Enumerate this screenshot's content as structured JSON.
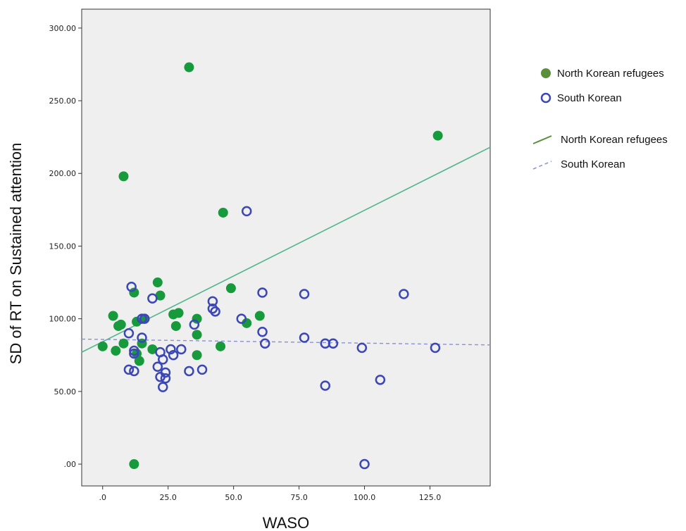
{
  "chart_data": {
    "type": "scatter",
    "xlabel": "WASO",
    "ylabel": "SD of RT on Sustained attention",
    "xlim": [
      -8,
      148
    ],
    "ylim": [
      -15,
      313
    ],
    "x_ticks": [
      0,
      25,
      50,
      75,
      100,
      125
    ],
    "x_tick_labels": [
      ".0",
      "25.0",
      "50.0",
      "75.0",
      "100.0",
      "125.0"
    ],
    "y_ticks": [
      0,
      50,
      100,
      150,
      200,
      250,
      300
    ],
    "y_tick_labels": [
      ".00",
      "50.00",
      "100.00",
      "150.00",
      "200.00",
      "250.00",
      "300.00"
    ],
    "grid": false,
    "legend_position": "right",
    "background": "#efefef",
    "series": [
      {
        "name": "North Korean refugees",
        "marker": "filled-circle",
        "color": "#169a3c",
        "points": [
          [
            0,
            81
          ],
          [
            4,
            102
          ],
          [
            5,
            78
          ],
          [
            6,
            95
          ],
          [
            7,
            96
          ],
          [
            8,
            83
          ],
          [
            8,
            198
          ],
          [
            12,
            118
          ],
          [
            13,
            98
          ],
          [
            13,
            76
          ],
          [
            14,
            71
          ],
          [
            15,
            83
          ],
          [
            16,
            100
          ],
          [
            19,
            79
          ],
          [
            21,
            125
          ],
          [
            22,
            116
          ],
          [
            27,
            103
          ],
          [
            28,
            95
          ],
          [
            29,
            104
          ],
          [
            33,
            273
          ],
          [
            36,
            100
          ],
          [
            36,
            89
          ],
          [
            36,
            75
          ],
          [
            45,
            81
          ],
          [
            46,
            173
          ],
          [
            49,
            121
          ],
          [
            55,
            97
          ],
          [
            60,
            102
          ],
          [
            12,
            0
          ],
          [
            128,
            226
          ]
        ]
      },
      {
        "name": "South Korean",
        "marker": "open-circle",
        "color": "#3b47b5",
        "points": [
          [
            10,
            65
          ],
          [
            10,
            90
          ],
          [
            11,
            122
          ],
          [
            12,
            64
          ],
          [
            12,
            78
          ],
          [
            12,
            76
          ],
          [
            15,
            100
          ],
          [
            15,
            87
          ],
          [
            16,
            100
          ],
          [
            19,
            114
          ],
          [
            21,
            67
          ],
          [
            22,
            77
          ],
          [
            22,
            60
          ],
          [
            23,
            72
          ],
          [
            23,
            53
          ],
          [
            24,
            63
          ],
          [
            24,
            59
          ],
          [
            26,
            79
          ],
          [
            27,
            75
          ],
          [
            30,
            79
          ],
          [
            33,
            64
          ],
          [
            35,
            96
          ],
          [
            38,
            65
          ],
          [
            42,
            112
          ],
          [
            42,
            107
          ],
          [
            43,
            105
          ],
          [
            53,
            100
          ],
          [
            55,
            174
          ],
          [
            61,
            118
          ],
          [
            61,
            91
          ],
          [
            62,
            83
          ],
          [
            77,
            117
          ],
          [
            77,
            87
          ],
          [
            85,
            83
          ],
          [
            85,
            54
          ],
          [
            88,
            83
          ],
          [
            99,
            80
          ],
          [
            100,
            0
          ],
          [
            106,
            58
          ],
          [
            115,
            117
          ],
          [
            127,
            80
          ]
        ]
      }
    ],
    "fit_lines": [
      {
        "name": "North Korean refugees",
        "style": "solid",
        "color": "#4fb58a",
        "x": [
          -8,
          148
        ],
        "y": [
          77,
          218
        ]
      },
      {
        "name": "South Korean",
        "style": "dashed",
        "color": "#8a90d8",
        "x": [
          -8,
          148
        ],
        "y": [
          86,
          82
        ]
      }
    ],
    "legend": {
      "markers": [
        {
          "label": "North Korean refugees",
          "marker": "filled-circle",
          "color": "#5a8f3c"
        },
        {
          "label": "South Korean",
          "marker": "open-circle",
          "color": "#3b47b5"
        }
      ],
      "lines": [
        {
          "label": "North Korean refugees",
          "style": "solid",
          "color": "#5a8f3c"
        },
        {
          "label": "South Korean",
          "style": "dashed",
          "color": "#8a90d8"
        }
      ]
    }
  }
}
